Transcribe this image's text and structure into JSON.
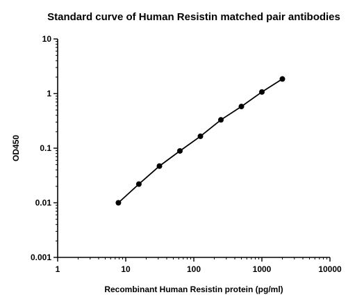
{
  "chart_data": {
    "type": "scatter",
    "title": "Standard curve of Human Resistin matched pair antibodies",
    "xlabel": "Recombinant Human Resistin protein (pg/ml)",
    "ylabel": "OD450",
    "x_scale": "log",
    "y_scale": "log",
    "xlim": [
      1,
      10000
    ],
    "ylim": [
      0.001,
      10
    ],
    "x_ticks": [
      1,
      10,
      100,
      1000,
      10000
    ],
    "x_tick_labels": [
      "1",
      "10",
      "100",
      "1000",
      "10000"
    ],
    "y_ticks": [
      0.001,
      0.01,
      0.1,
      1,
      10
    ],
    "y_tick_labels": [
      "0.001",
      "0.01",
      "0.1",
      "1",
      "10"
    ],
    "grid": false,
    "legend": "none",
    "series": [
      {
        "x": [
          7.8,
          15.6,
          31.25,
          62.5,
          125,
          250,
          500,
          1000,
          2000
        ],
        "y": [
          0.01,
          0.022,
          0.047,
          0.089,
          0.165,
          0.33,
          0.58,
          1.07,
          1.85
        ],
        "color": "#000000",
        "marker": "circle",
        "connected": true
      }
    ]
  }
}
